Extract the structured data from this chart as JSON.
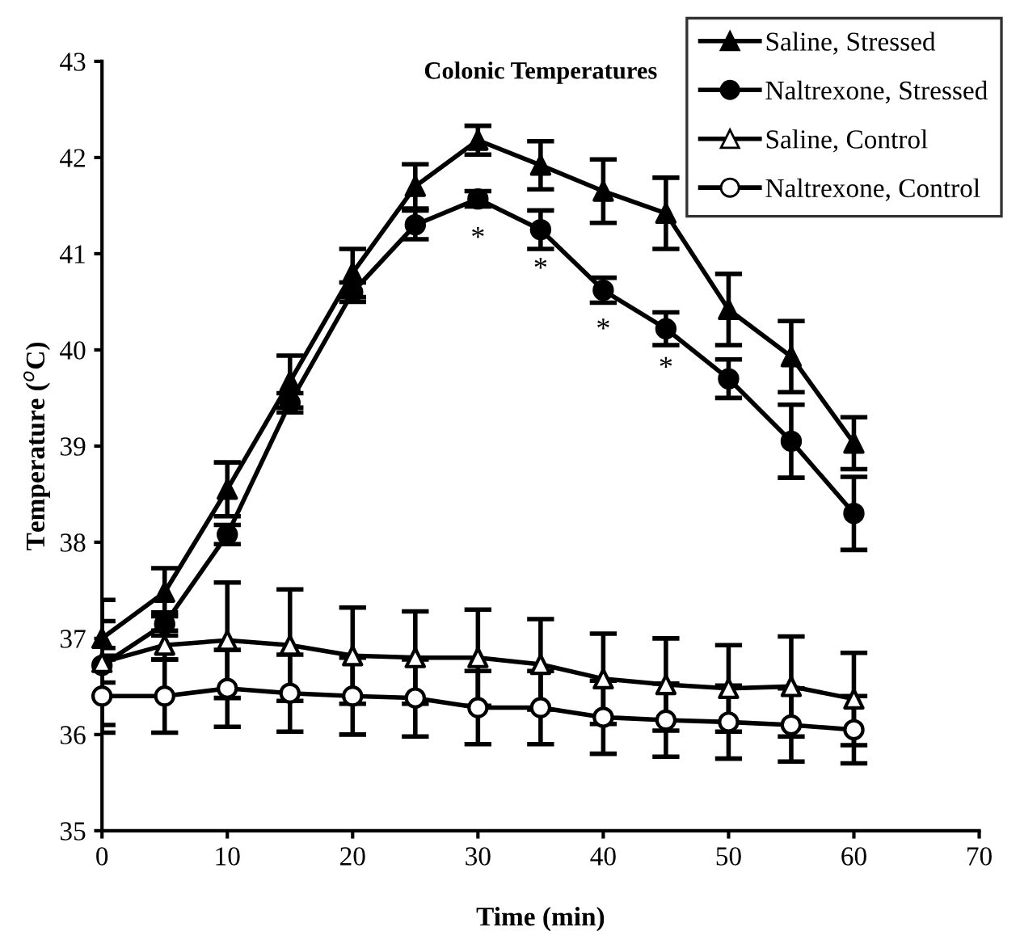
{
  "chart_data": {
    "type": "line",
    "title": "Colonic Temperatures",
    "xlabel": "Time (min)",
    "ylabel": "Temperature ($^{o}$C)",
    "x": [
      0,
      5,
      10,
      15,
      20,
      25,
      30,
      35,
      40,
      45,
      50,
      55,
      60
    ],
    "series": [
      {
        "name": "Saline, Stressed",
        "color": "#000000",
        "marker": "triangle",
        "colors": [
          "#000000",
          "#000000",
          "#000000",
          "#000000",
          "#000000",
          "#000000",
          "#000000",
          "#000000",
          "#000000",
          "#000000",
          "#000000",
          "#000000",
          "#000000"
        ],
        "values": [
          37.0,
          37.48,
          38.55,
          39.67,
          40.8,
          41.7,
          42.18,
          41.92,
          41.65,
          41.42,
          40.42,
          39.93,
          39.03
        ],
        "errors": [
          0.18,
          0.25,
          0.28,
          0.27,
          0.25,
          0.23,
          0.15,
          0.25,
          0.33,
          0.37,
          0.37,
          0.37,
          0.27
        ]
      },
      {
        "name": "Naltrexone, Stressed",
        "color": "#000000",
        "marker": "circle",
        "colors": [
          "#000000",
          "#000000",
          "#000000",
          "#000000",
          "#000000",
          "#000000",
          "#000000",
          "#000000",
          "#000000",
          "#000000",
          "#000000",
          "#000000",
          "#000000"
        ],
        "values": [
          36.72,
          37.15,
          38.08,
          39.45,
          40.6,
          41.3,
          41.57,
          41.25,
          40.62,
          40.22,
          39.7,
          39.05,
          38.3
        ],
        "errors": [
          0.18,
          0.12,
          0.1,
          0.1,
          0.1,
          0.15,
          0.08,
          0.2,
          0.13,
          0.17,
          0.2,
          0.38,
          0.38
        ]
      },
      {
        "name": "Saline, Control",
        "color": "#000000",
        "marker": "triangle",
        "colors": [
          "#ffffff",
          "#ffffff",
          "#ffffff",
          "#ffffff",
          "#ffffff",
          "#ffffff",
          "#ffffff",
          "#ffffff",
          "#ffffff",
          "#ffffff",
          "#ffffff",
          "#ffffff",
          "#ffffff"
        ],
        "values": [
          36.75,
          36.93,
          36.98,
          36.93,
          36.82,
          36.8,
          36.8,
          36.73,
          36.58,
          36.52,
          36.48,
          36.5,
          36.37
        ],
        "errors": [
          0.65,
          0.15,
          0.6,
          0.58,
          0.5,
          0.48,
          0.5,
          0.47,
          0.47,
          0.48,
          0.45,
          0.52,
          0.48
        ]
      },
      {
        "name": "Naltrexone, Control",
        "color": "#000000",
        "marker": "circle",
        "colors": [
          "#ffffff",
          "#ffffff",
          "#ffffff",
          "#ffffff",
          "#ffffff",
          "#ffffff",
          "#ffffff",
          "#ffffff",
          "#ffffff",
          "#ffffff",
          "#ffffff",
          "#ffffff",
          "#ffffff"
        ],
        "values": [
          36.4,
          36.4,
          36.48,
          36.43,
          36.4,
          36.38,
          36.28,
          36.28,
          36.18,
          36.15,
          36.13,
          36.1,
          36.05
        ],
        "errors": [
          0.38,
          0.38,
          0.4,
          0.4,
          0.4,
          0.4,
          0.38,
          0.38,
          0.38,
          0.38,
          0.38,
          0.38,
          0.35
        ]
      }
    ],
    "annotations": [
      {
        "text": "*",
        "x": 30,
        "y": 41.57
      },
      {
        "text": "*",
        "x": 35,
        "y": 41.25
      },
      {
        "text": "*",
        "x": 40,
        "y": 40.62
      },
      {
        "text": "*",
        "x": 45,
        "y": 40.22
      }
    ],
    "xlim": [
      0,
      70
    ],
    "xticks": [
      0,
      10,
      20,
      30,
      40,
      50,
      60,
      70
    ],
    "ylim": [
      35,
      43
    ],
    "yticks": [
      35,
      36,
      37,
      38,
      39,
      40,
      41,
      42,
      43
    ],
    "grid": false,
    "legend": "top right",
    "line_style": "solid"
  }
}
